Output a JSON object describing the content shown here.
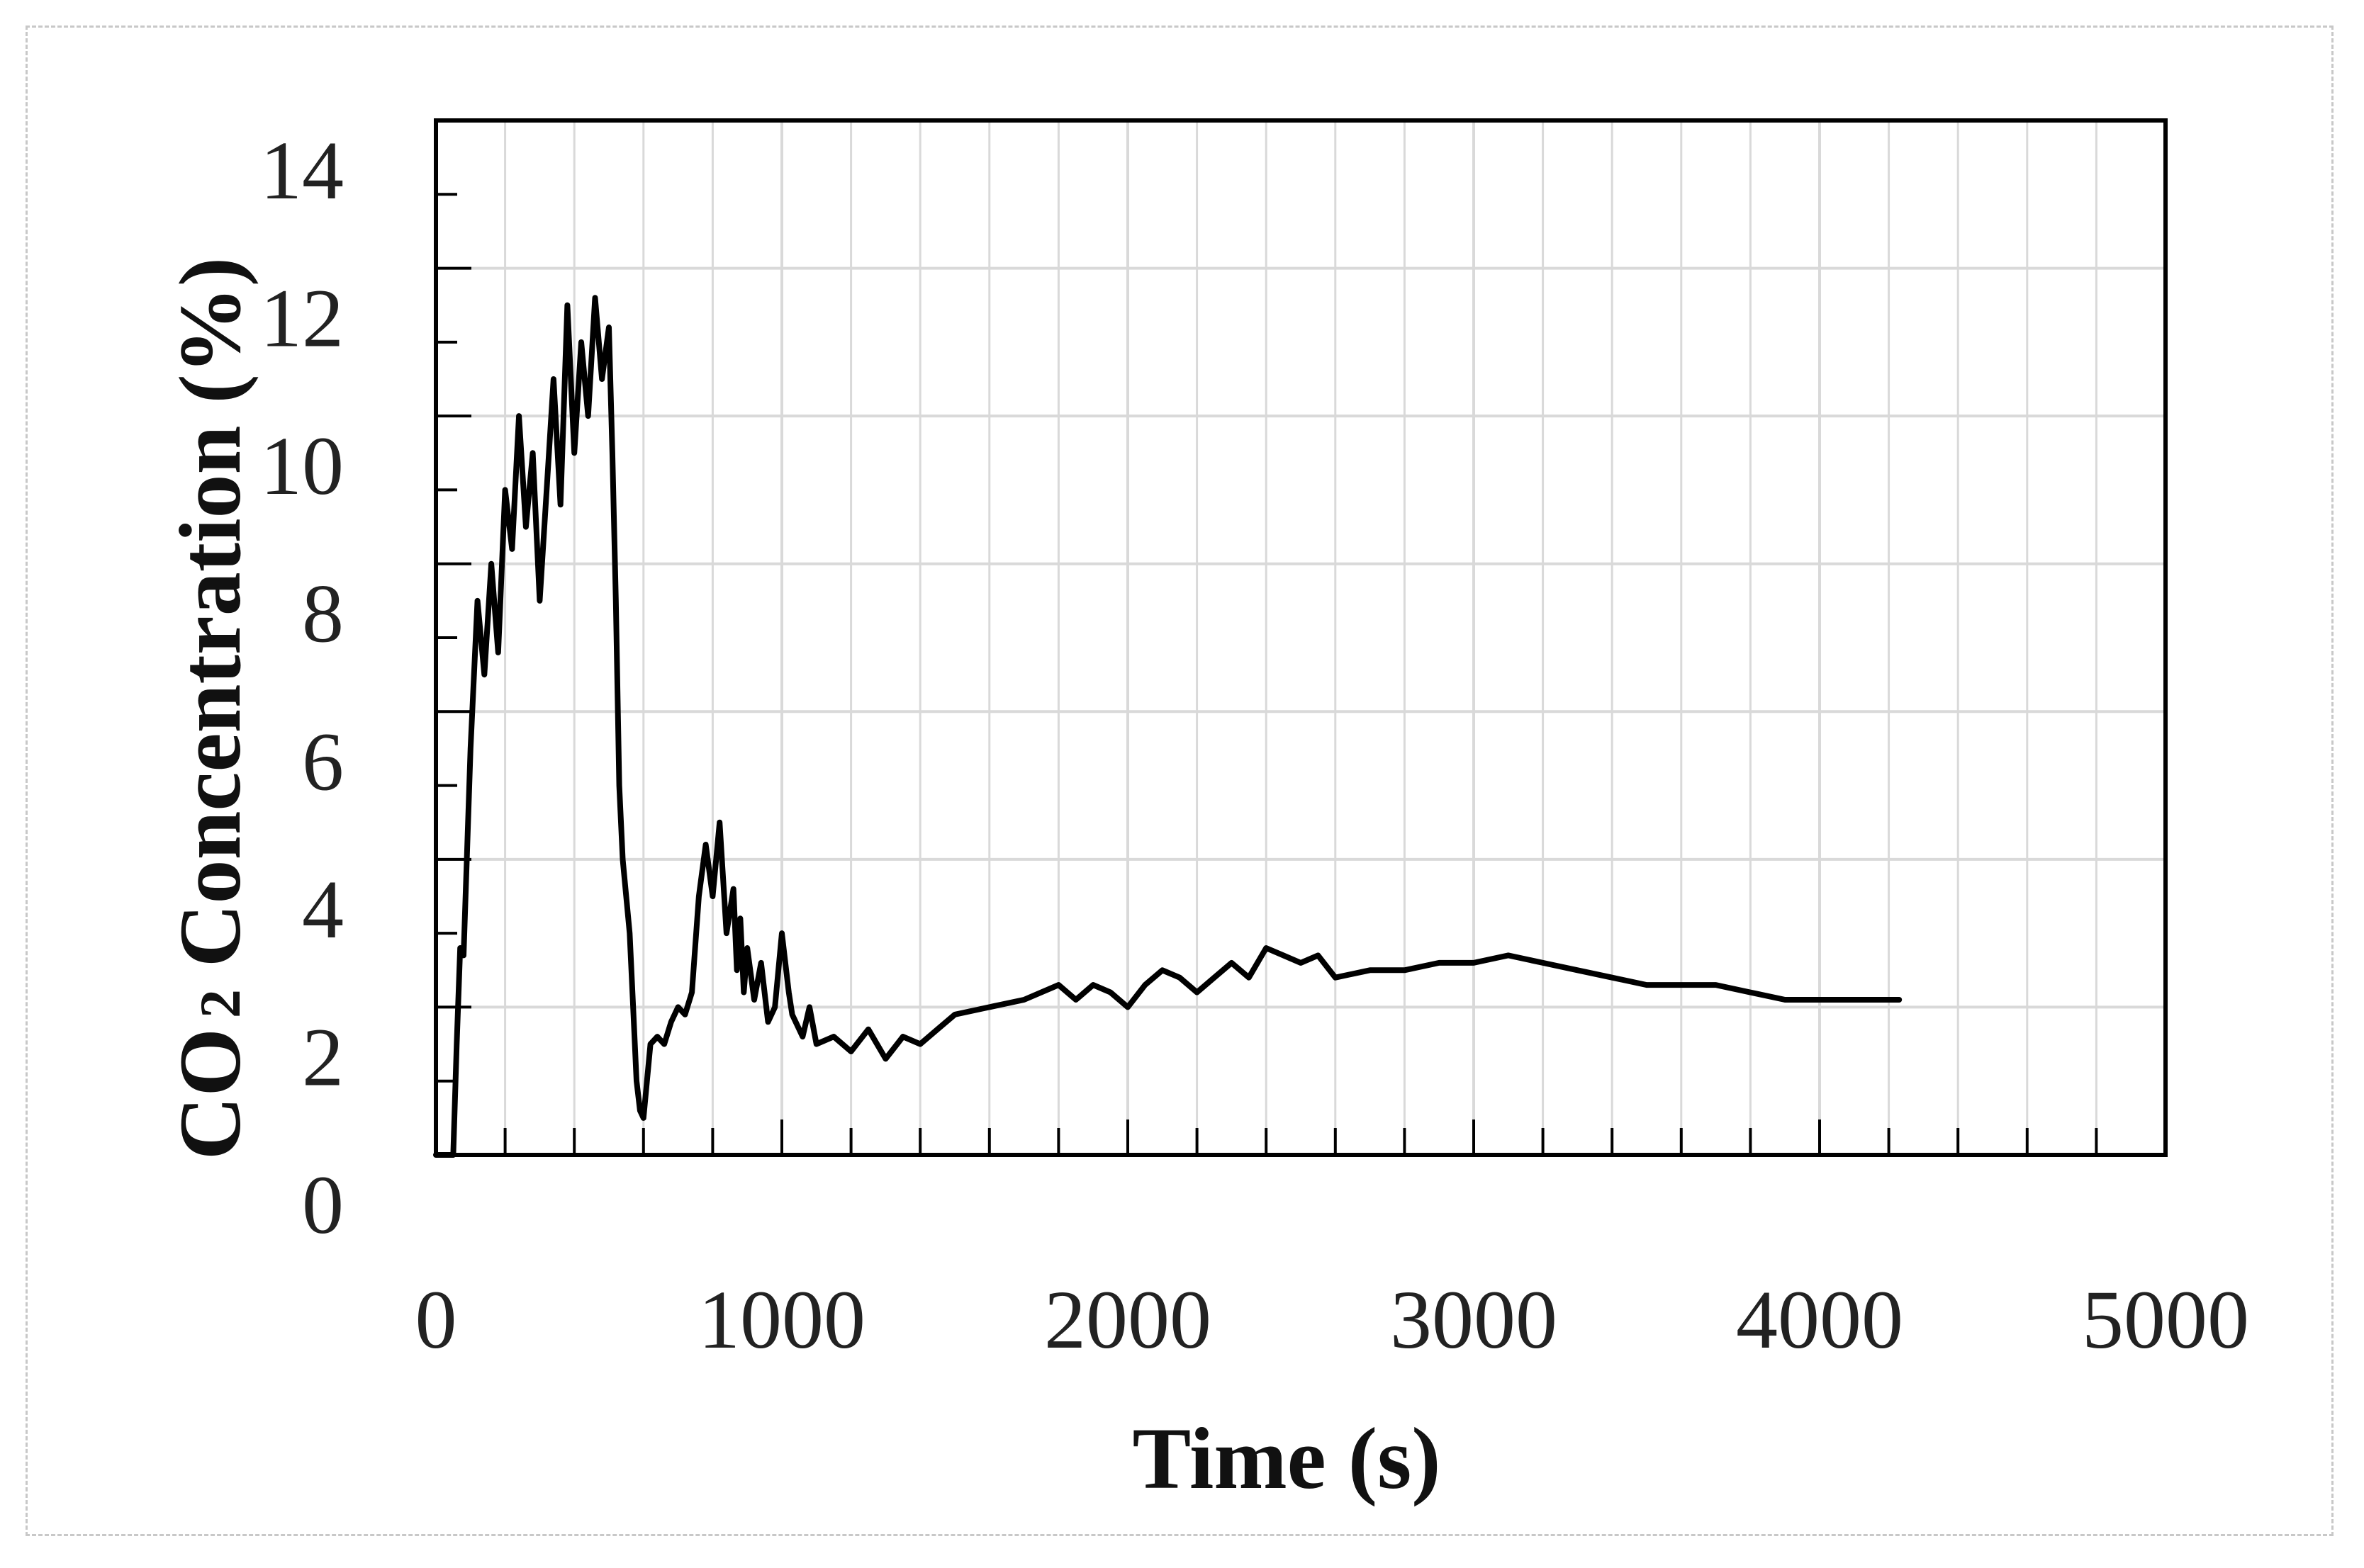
{
  "colors": {
    "line": "#000000",
    "grid": "#d9d9d9",
    "axis": "#000000",
    "text": "#222222"
  },
  "chart_data": {
    "type": "line",
    "title": "",
    "xlabel": "Time (s)",
    "ylabel_main": "CO",
    "ylabel_sub": "2",
    "ylabel_rest": " Concentration (%)",
    "xlim": [
      0,
      5000
    ],
    "ylim": [
      0,
      14
    ],
    "x_ticks": [
      0,
      1000,
      2000,
      3000,
      4000,
      5000
    ],
    "x_tick_labels": [
      "0",
      "1000",
      "2000",
      "3000",
      "4000",
      "5000"
    ],
    "y_ticks": [
      0,
      2,
      4,
      6,
      8,
      10,
      12,
      14
    ],
    "y_tick_labels": [
      "0",
      "2",
      "4",
      "6",
      "8",
      "10",
      "12",
      "14"
    ],
    "x_minor_step": 200,
    "y_minor_step": 1,
    "grid": true,
    "legend": "none",
    "series": [
      {
        "x": [
          0,
          50,
          60,
          70,
          80,
          100,
          120,
          140,
          160,
          180,
          200,
          220,
          240,
          260,
          280,
          300,
          320,
          340,
          360,
          380,
          400,
          420,
          440,
          460,
          480,
          500,
          510,
          520,
          530,
          540,
          550,
          560,
          570,
          580,
          590,
          600,
          620,
          640,
          660,
          680,
          700,
          720,
          740,
          760,
          780,
          800,
          820,
          840,
          860,
          870,
          880,
          890,
          900,
          920,
          940,
          960,
          980,
          1000,
          1020,
          1030,
          1040,
          1060,
          1080,
          1100,
          1150,
          1200,
          1250,
          1300,
          1350,
          1400,
          1450,
          1500,
          1600,
          1700,
          1800,
          1850,
          1900,
          1950,
          2000,
          2050,
          2100,
          2150,
          2200,
          2250,
          2300,
          2350,
          2400,
          2450,
          2500,
          2550,
          2600,
          2700,
          2800,
          2900,
          3000,
          3100,
          3200,
          3300,
          3400,
          3500,
          3600,
          3700,
          3800,
          3900,
          4000,
          4100,
          4200,
          4230
        ],
        "y": [
          0,
          0,
          1.5,
          2.8,
          2.7,
          5.5,
          7.5,
          6.5,
          8.0,
          6.8,
          9.0,
          8.2,
          10.0,
          8.5,
          9.5,
          7.5,
          9.0,
          10.5,
          8.8,
          11.5,
          9.5,
          11.0,
          10.0,
          11.6,
          10.5,
          11.2,
          9.5,
          7.5,
          5.0,
          4.0,
          3.5,
          3.0,
          2.0,
          1.0,
          0.6,
          0.5,
          1.5,
          1.6,
          1.5,
          1.8,
          2.0,
          1.9,
          2.2,
          3.5,
          4.2,
          3.5,
          4.5,
          3.0,
          3.6,
          2.5,
          3.2,
          2.2,
          2.8,
          2.1,
          2.6,
          1.8,
          2.0,
          3.0,
          2.2,
          1.9,
          1.8,
          1.6,
          2.0,
          1.5,
          1.6,
          1.4,
          1.7,
          1.3,
          1.6,
          1.5,
          1.7,
          1.9,
          2.0,
          2.1,
          2.3,
          2.1,
          2.3,
          2.2,
          2.0,
          2.3,
          2.5,
          2.4,
          2.2,
          2.4,
          2.6,
          2.4,
          2.8,
          2.7,
          2.6,
          2.7,
          2.4,
          2.5,
          2.5,
          2.6,
          2.6,
          2.7,
          2.6,
          2.5,
          2.4,
          2.3,
          2.3,
          2.3,
          2.2,
          2.1,
          2.1,
          2.1,
          2.1,
          2.1
        ]
      }
    ]
  }
}
